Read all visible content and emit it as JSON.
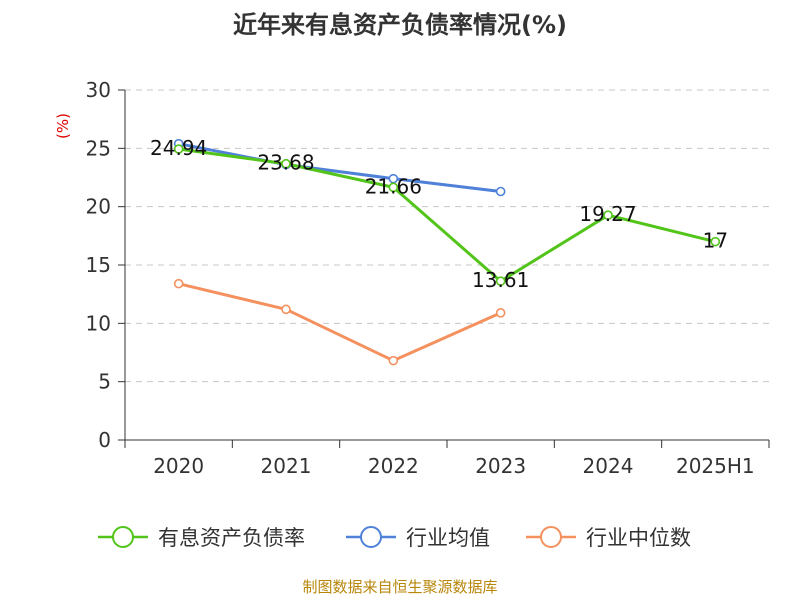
{
  "chart_data": {
    "type": "line",
    "title": "近年来有息资产负债率情况(%)",
    "ylabel": "(%)",
    "ylim": [
      0,
      30
    ],
    "yticks": [
      0,
      5,
      10,
      15,
      20,
      25,
      30
    ],
    "categories": [
      "2020",
      "2021",
      "2022",
      "2023",
      "2024",
      "2025H1"
    ],
    "grid": true,
    "legend_position": "bottom",
    "series": [
      {
        "name": "有息资产负债率",
        "color": "#52c41a",
        "values": [
          24.94,
          23.68,
          21.66,
          13.61,
          19.27,
          17
        ],
        "labels": [
          "24.94",
          "23.68",
          "21.66",
          "13.61",
          "19.27",
          "17"
        ]
      },
      {
        "name": "行业均值",
        "color": "#4f81d9",
        "values": [
          25.4,
          23.6,
          22.4,
          21.3,
          null,
          null
        ]
      },
      {
        "name": "行业中位数",
        "color": "#f4915e",
        "values": [
          13.4,
          11.2,
          6.8,
          10.9,
          null,
          null
        ]
      }
    ],
    "source": "制图数据来自恒生聚源数据库"
  }
}
